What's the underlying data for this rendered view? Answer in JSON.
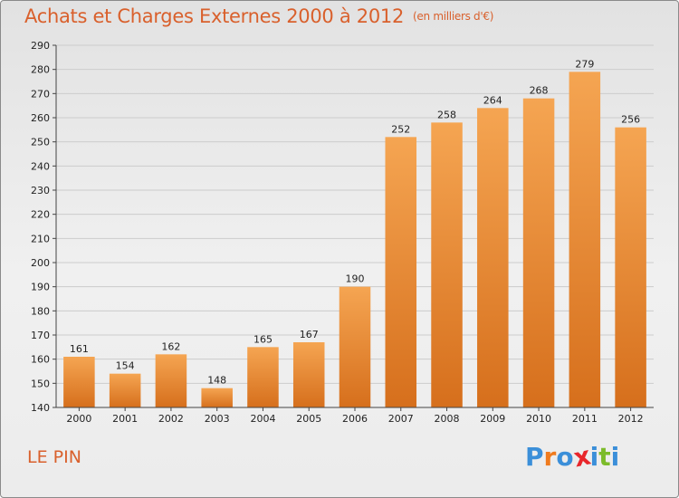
{
  "header": {
    "title": "Achats et Charges Externes 2000 à 2012",
    "subtitle": "(en milliers d'€)"
  },
  "footer": {
    "place": "LE PIN",
    "logo_text": "Proxiti",
    "logo_letters": [
      "P",
      "r",
      "o",
      "x",
      "i",
      "t",
      "i"
    ],
    "logo_colors": [
      "#3b8fd9",
      "#ef7b1e",
      "#3b8fd9",
      "#e8262b",
      "#3b8fd9",
      "#7cbb2a",
      "#3b8fd9"
    ]
  },
  "colors": {
    "bar_light": "#f5a552",
    "bar_dark": "#d66f1c",
    "grid": "#cccccc",
    "axis": "#444444",
    "accent": "#d9602c"
  },
  "chart_data": {
    "type": "bar",
    "title": "Achats et Charges Externes 2000 à 2012",
    "subtitle": "(en milliers d'€)",
    "categories": [
      "2000",
      "2001",
      "2002",
      "2003",
      "2004",
      "2005",
      "2006",
      "2007",
      "2008",
      "2009",
      "2010",
      "2011",
      "2012"
    ],
    "values": [
      161,
      154,
      162,
      148,
      165,
      167,
      190,
      252,
      258,
      264,
      268,
      279,
      256
    ],
    "ylim": [
      140,
      290
    ],
    "yticks": [
      140,
      150,
      160,
      170,
      180,
      190,
      200,
      210,
      220,
      230,
      240,
      250,
      260,
      270,
      280,
      290
    ],
    "grid": true,
    "data_labels": true
  }
}
